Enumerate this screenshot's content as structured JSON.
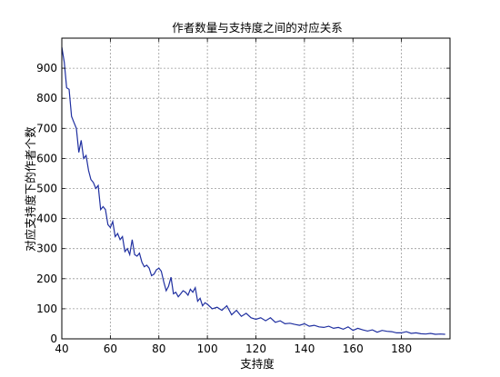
{
  "chart_data": {
    "type": "line",
    "title": "作者数量与支持度之间的对应关系",
    "xlabel": "支持度",
    "ylabel": "对应支持度下的作者个数",
    "xlim": [
      40,
      200
    ],
    "ylim": [
      0,
      1000
    ],
    "xticks": [
      40,
      60,
      80,
      100,
      120,
      140,
      160,
      180
    ],
    "yticks": [
      0,
      100,
      200,
      300,
      400,
      500,
      600,
      700,
      800,
      900
    ],
    "grid": true,
    "line_color": "#1f2fa0",
    "series": [
      {
        "x": [
          40,
          41,
          42,
          43,
          44,
          45,
          46,
          47,
          48,
          49,
          50,
          51,
          52,
          53,
          54,
          55,
          56,
          57,
          58,
          59,
          60,
          61,
          62,
          63,
          64,
          65,
          66,
          67,
          68,
          69,
          70,
          71,
          72,
          73,
          74,
          75,
          76,
          77,
          78,
          79,
          80,
          81,
          82,
          83,
          84,
          85,
          86,
          87,
          88,
          89,
          90,
          91,
          92,
          93,
          94,
          95,
          96,
          97,
          98,
          99,
          100,
          102,
          104,
          106,
          108,
          110,
          112,
          114,
          116,
          118,
          120,
          122,
          124,
          126,
          128,
          130,
          132,
          134,
          136,
          138,
          140,
          142,
          144,
          146,
          148,
          150,
          152,
          154,
          156,
          158,
          160,
          162,
          164,
          166,
          168,
          170,
          172,
          174,
          176,
          178,
          180,
          182,
          184,
          186,
          188,
          190,
          192,
          194,
          196,
          198
        ],
        "y": [
          970,
          920,
          835,
          830,
          740,
          720,
          700,
          620,
          660,
          600,
          610,
          560,
          530,
          520,
          500,
          510,
          430,
          440,
          430,
          380,
          370,
          390,
          340,
          350,
          330,
          340,
          290,
          300,
          280,
          330,
          280,
          275,
          285,
          255,
          240,
          245,
          235,
          210,
          215,
          230,
          235,
          225,
          190,
          160,
          175,
          205,
          150,
          155,
          140,
          150,
          160,
          155,
          145,
          165,
          155,
          170,
          125,
          135,
          110,
          120,
          115,
          100,
          105,
          95,
          110,
          80,
          95,
          75,
          85,
          70,
          65,
          70,
          60,
          70,
          55,
          60,
          50,
          52,
          48,
          45,
          50,
          42,
          45,
          40,
          38,
          42,
          35,
          38,
          32,
          40,
          28,
          35,
          30,
          26,
          30,
          22,
          28,
          25,
          24,
          20,
          20,
          24,
          18,
          20,
          17,
          16,
          18,
          15,
          16,
          15
        ]
      }
    ]
  }
}
